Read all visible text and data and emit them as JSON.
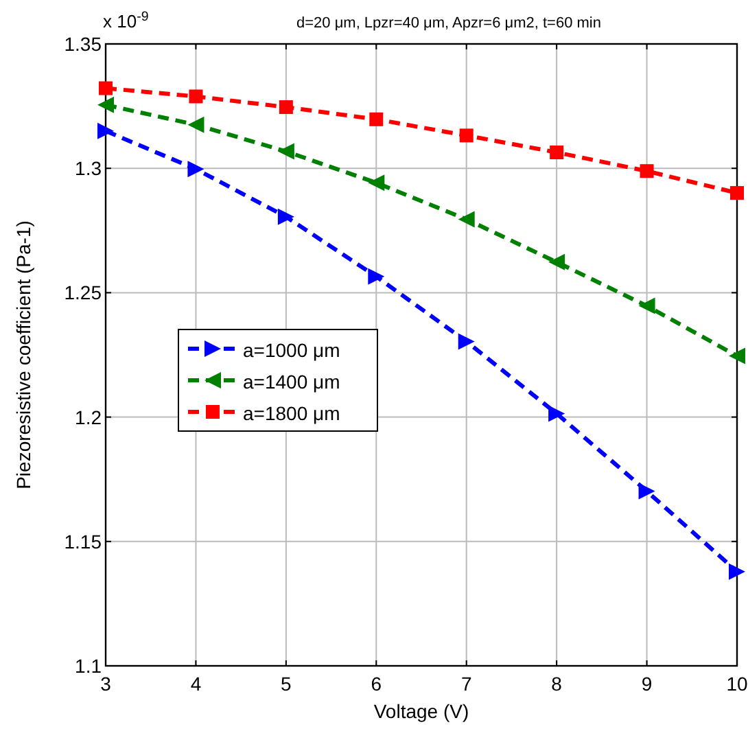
{
  "chart_data": {
    "type": "line",
    "title": "d=20 μm, Lpzr=40 μm, Apzr=6 μm2, t=60 min",
    "xlabel": "Voltage (V)",
    "ylabel": "Piezoresistive coefficient (Pa-1)",
    "annotations": [
      "x 10$^{-9}$"
    ],
    "x": [
      3,
      4,
      5,
      6,
      7,
      8,
      9,
      10
    ],
    "xlim": [
      3,
      10
    ],
    "xticks": [
      3,
      4,
      5,
      6,
      7,
      8,
      9,
      10
    ],
    "ylim": [
      1.1,
      1.35
    ],
    "yticks": [
      1.1,
      1.15,
      1.2,
      1.25,
      1.3,
      1.35
    ],
    "grid": true,
    "legend": "left",
    "line_style": "dashed",
    "series": [
      {
        "name": "a=1000 μm",
        "color": "#0000ff",
        "marker": "triangle-right",
        "values": [
          1.315,
          1.2997,
          1.2805,
          1.2565,
          1.2304,
          1.2014,
          1.1702,
          1.1379
        ]
      },
      {
        "name": "a=1400 μm",
        "color": "#008000",
        "marker": "triangle-left",
        "values": [
          1.3255,
          1.3175,
          1.3068,
          1.2942,
          1.2795,
          1.2623,
          1.2447,
          1.2246
        ]
      },
      {
        "name": "a=1800 μm",
        "color": "#ff0000",
        "marker": "square",
        "values": [
          1.3322,
          1.3289,
          1.3246,
          1.3197,
          1.3132,
          1.3064,
          1.2989,
          1.2901
        ]
      }
    ]
  }
}
